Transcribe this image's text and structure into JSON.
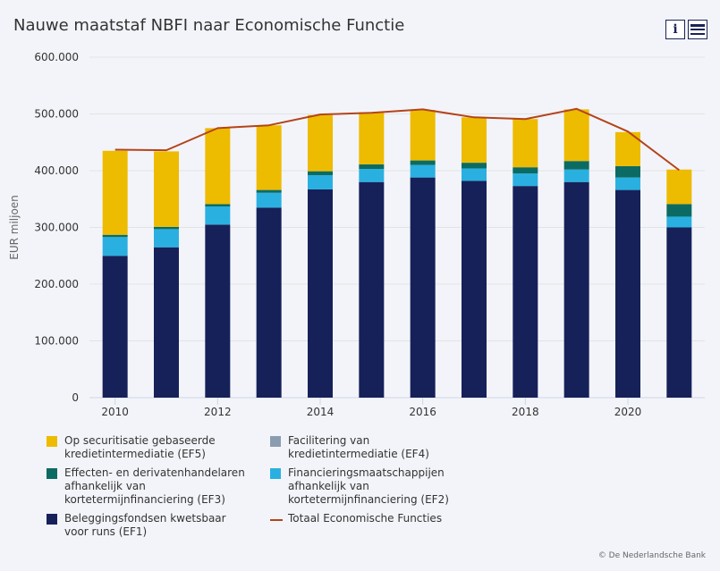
{
  "title": "Nauwe maatstaf NBFI naar Economische Functie",
  "toolbar": {
    "info_icon": "info-icon",
    "menu_icon": "hamburger-menu-icon"
  },
  "credit": "© De Nederlandsche Bank",
  "chart_data": {
    "type": "bar",
    "stacked": true,
    "title": "Nauwe maatstaf NBFI naar Economische Functie",
    "ylabel": "EUR miljoen",
    "xlabel": "",
    "ylim": [
      0,
      600000
    ],
    "yticks": [
      "0",
      "100.000",
      "200.000",
      "300.000",
      "400.000",
      "500.000",
      "600.000"
    ],
    "ytick_values": [
      0,
      100000,
      200000,
      300000,
      400000,
      500000,
      600000
    ],
    "xticks": [
      "2010",
      "2012",
      "2014",
      "2016",
      "2018",
      "2020"
    ],
    "categories": [
      "2010",
      "2011",
      "2012",
      "2013",
      "2014",
      "2015",
      "2016",
      "2017",
      "2018",
      "2019",
      "2020",
      "2021"
    ],
    "grid": true,
    "legend_position": "bottom",
    "series": [
      {
        "name": "Beleggingsfondsen kwetsbaar voor runs (EF1)",
        "label": "Beleggingsfondsen kwetsbaar\nvoor runs (EF1)",
        "color": "#16215a",
        "values": [
          250000,
          265000,
          305000,
          335000,
          367000,
          380000,
          388000,
          382000,
          373000,
          380000,
          366000,
          300000
        ]
      },
      {
        "name": "Financieringsmaatschappijen afhankelijk van kortetermijnfinanciering (EF2)",
        "label": "Financieringsmaatschappijen\nafhankelijk van\nkortetermijnfinanciering (EF2)",
        "color": "#2ab0e0",
        "values": [
          33000,
          32000,
          32000,
          26000,
          25000,
          23000,
          22000,
          22000,
          22000,
          22000,
          22000,
          19000
        ]
      },
      {
        "name": "Facilitering van kredietintermediatie (EF4)",
        "label": "Facilitering van\nkredietintermediatie (EF4)",
        "color": "#8a9db0",
        "values": [
          0,
          0,
          0,
          0,
          0,
          0,
          0,
          0,
          0,
          0,
          0,
          0
        ]
      },
      {
        "name": "Effecten- en derivatenhandelaren afhankelijk van kortetermijnfinanciering (EF3)",
        "label": "Effecten- en derivatenhandelaren\nafhankelijk van\nkortetermijnfinanciering (EF3)",
        "color": "#0b6b63",
        "values": [
          4000,
          4000,
          4000,
          5000,
          7000,
          8000,
          8000,
          10000,
          11000,
          15000,
          20000,
          22000
        ]
      },
      {
        "name": "Op securitisatie gebaseerde kredietintermediatie (EF5)",
        "label": "Op securitisatie gebaseerde\nkredietintermediatie (EF5)",
        "color": "#edbb00",
        "values": [
          148000,
          133000,
          134000,
          114000,
          99000,
          92000,
          89000,
          80000,
          85000,
          91000,
          60000,
          61000
        ]
      }
    ],
    "line": {
      "name": "Totaal Economische Functies",
      "label": "Totaal Economische Functies",
      "color": "#b3441b",
      "values": [
        437000,
        436000,
        475000,
        480000,
        499000,
        502000,
        508000,
        494000,
        491000,
        509000,
        469000,
        401000
      ]
    },
    "legend_order": [
      4,
      2,
      3,
      1,
      0,
      "line"
    ]
  }
}
